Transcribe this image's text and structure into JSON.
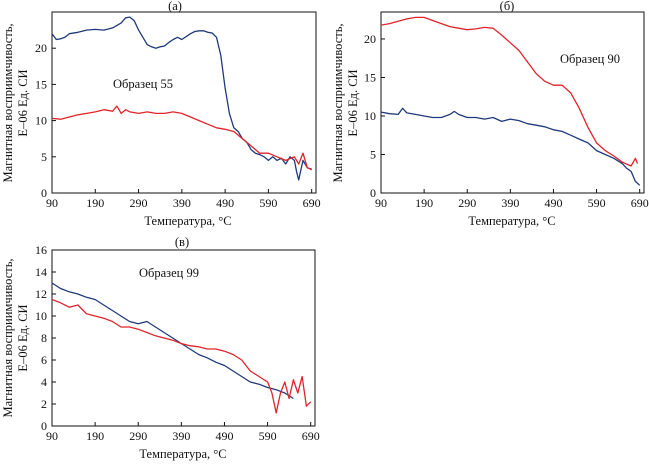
{
  "chart_data": [
    {
      "type": "line",
      "panel_label": "(а)",
      "annotation": "Образец 55",
      "xlabel": "Температура, °C",
      "ylabel_line1": "Магнитная восприимчивость,",
      "ylabel_line2": "Е–06 Ед. СИ",
      "xlim": [
        90,
        700
      ],
      "ylim": [
        0,
        25
      ],
      "xticks": [
        90,
        190,
        290,
        390,
        490,
        590,
        690
      ],
      "yticks": [
        0,
        5,
        10,
        15,
        20
      ],
      "series": [
        {
          "color": "#1f3a7a",
          "x": [
            90,
            100,
            110,
            120,
            130,
            150,
            170,
            190,
            210,
            230,
            250,
            260,
            270,
            280,
            290,
            300,
            310,
            320,
            330,
            340,
            350,
            360,
            370,
            380,
            390,
            400,
            410,
            420,
            430,
            440,
            450,
            460,
            470,
            480,
            490,
            500,
            505,
            510,
            520,
            530,
            540,
            550,
            560,
            570,
            580,
            590,
            600,
            610,
            620,
            630,
            640,
            650,
            655,
            660,
            670,
            680,
            690
          ],
          "y": [
            22,
            21.2,
            21.3,
            21.5,
            22,
            22.2,
            22.5,
            22.6,
            22.5,
            22.8,
            23.5,
            24.2,
            24.3,
            23.8,
            22.5,
            21.5,
            20.5,
            20.2,
            20.0,
            20.2,
            20.3,
            20.8,
            21.2,
            21.5,
            21.2,
            21.6,
            22.0,
            22.3,
            22.4,
            22.4,
            22.2,
            22.1,
            21.5,
            19.0,
            14.5,
            11.0,
            10.0,
            9.0,
            8.5,
            7.5,
            7.0,
            6.0,
            5.5,
            5.3,
            5.0,
            4.5,
            5.0,
            4.5,
            4.8,
            4.0,
            5.0,
            4.5,
            3.0,
            1.8,
            4.5,
            3.5,
            3.3
          ]
        },
        {
          "color": "#e0242b",
          "x": [
            90,
            110,
            130,
            150,
            170,
            190,
            210,
            230,
            240,
            250,
            260,
            270,
            290,
            310,
            330,
            350,
            370,
            390,
            410,
            430,
            450,
            470,
            490,
            510,
            530,
            550,
            570,
            590,
            610,
            630,
            650,
            660,
            670,
            680,
            690
          ],
          "y": [
            10.3,
            10.2,
            10.5,
            10.8,
            11.0,
            11.2,
            11.5,
            11.3,
            12.0,
            11.0,
            11.5,
            11.2,
            11.0,
            11.2,
            11.0,
            11.0,
            11.2,
            11.0,
            10.5,
            10.0,
            9.5,
            9.0,
            8.8,
            8.5,
            7.5,
            6.5,
            5.5,
            5.5,
            5.0,
            4.5,
            5.0,
            4.0,
            5.5,
            3.5,
            3.2
          ]
        }
      ]
    },
    {
      "type": "line",
      "panel_label": "(б)",
      "annotation": "Образец 90",
      "xlabel": "Температура, °C",
      "ylabel_line1": "Магнитная восприимчивость,",
      "ylabel_line2": "Е–06 Ед. СИ",
      "xlim": [
        90,
        700
      ],
      "ylim": [
        0,
        23.5
      ],
      "xticks": [
        90,
        190,
        290,
        390,
        490,
        590,
        690
      ],
      "yticks": [
        0,
        5,
        10,
        15,
        20
      ],
      "series": [
        {
          "color": "#e0242b",
          "x": [
            90,
            110,
            130,
            150,
            170,
            190,
            210,
            230,
            250,
            270,
            290,
            310,
            330,
            350,
            370,
            390,
            410,
            430,
            450,
            470,
            490,
            510,
            530,
            550,
            570,
            590,
            610,
            630,
            650,
            670,
            680,
            685
          ],
          "y": [
            21.8,
            22.0,
            22.3,
            22.6,
            22.8,
            22.8,
            22.4,
            22.0,
            21.6,
            21.4,
            21.2,
            21.3,
            21.5,
            21.4,
            20.5,
            19.5,
            18.5,
            17.0,
            15.5,
            14.5,
            14.0,
            14.0,
            13.0,
            11.0,
            8.5,
            6.5,
            5.5,
            4.8,
            4.0,
            3.5,
            4.5,
            3.8
          ]
        },
        {
          "color": "#1f3a7a",
          "x": [
            90,
            110,
            130,
            140,
            150,
            170,
            190,
            210,
            230,
            250,
            260,
            270,
            290,
            310,
            330,
            350,
            370,
            390,
            410,
            430,
            450,
            470,
            490,
            510,
            530,
            550,
            570,
            590,
            610,
            630,
            650,
            660,
            670,
            680,
            690
          ],
          "y": [
            10.5,
            10.3,
            10.2,
            11.0,
            10.4,
            10.2,
            10.0,
            9.8,
            9.8,
            10.2,
            10.6,
            10.2,
            9.8,
            9.8,
            9.6,
            9.8,
            9.3,
            9.6,
            9.4,
            9.0,
            8.8,
            8.6,
            8.2,
            8.0,
            7.5,
            7.0,
            6.5,
            5.5,
            5.0,
            4.5,
            3.8,
            3.2,
            2.8,
            1.5,
            1.0
          ]
        }
      ]
    },
    {
      "type": "line",
      "panel_label": "(в)",
      "annotation": "Образец 99",
      "xlabel": "Температура, °C",
      "ylabel_line1": "Магнитная восприимчивость,",
      "ylabel_line2": "Е–06 Ед. СИ",
      "xlim": [
        90,
        700
      ],
      "ylim": [
        0,
        16
      ],
      "xticks": [
        90,
        190,
        290,
        390,
        490,
        590,
        690
      ],
      "yticks": [
        0,
        2,
        4,
        6,
        8,
        10,
        12,
        14,
        16
      ],
      "series": [
        {
          "color": "#1f3a7a",
          "x": [
            90,
            110,
            130,
            150,
            170,
            190,
            210,
            230,
            250,
            270,
            290,
            310,
            330,
            350,
            370,
            390,
            410,
            430,
            450,
            470,
            490,
            510,
            530,
            550,
            570,
            590,
            610,
            630,
            650
          ],
          "y": [
            13.0,
            12.5,
            12.2,
            12.0,
            11.7,
            11.5,
            11.0,
            10.5,
            10.0,
            9.5,
            9.3,
            9.5,
            9.0,
            8.5,
            8.0,
            7.5,
            7.0,
            6.5,
            6.2,
            5.8,
            5.5,
            5.0,
            4.5,
            4.0,
            3.8,
            3.5,
            3.3,
            3.0,
            2.5
          ]
        },
        {
          "color": "#e0242b",
          "x": [
            90,
            110,
            130,
            150,
            170,
            190,
            210,
            230,
            250,
            270,
            290,
            310,
            330,
            350,
            370,
            390,
            410,
            430,
            450,
            470,
            490,
            510,
            530,
            550,
            570,
            590,
            600,
            610,
            620,
            630,
            640,
            650,
            660,
            670,
            680,
            690
          ],
          "y": [
            11.5,
            11.2,
            10.8,
            11.0,
            10.2,
            10.0,
            9.8,
            9.5,
            9.0,
            9.0,
            8.8,
            8.5,
            8.2,
            8.0,
            7.8,
            7.5,
            7.3,
            7.2,
            7.0,
            7.0,
            6.8,
            6.5,
            6.0,
            5.0,
            4.5,
            4.0,
            3.0,
            1.2,
            3.0,
            4.0,
            2.5,
            4.2,
            3.0,
            4.5,
            1.8,
            2.2
          ]
        }
      ]
    }
  ]
}
